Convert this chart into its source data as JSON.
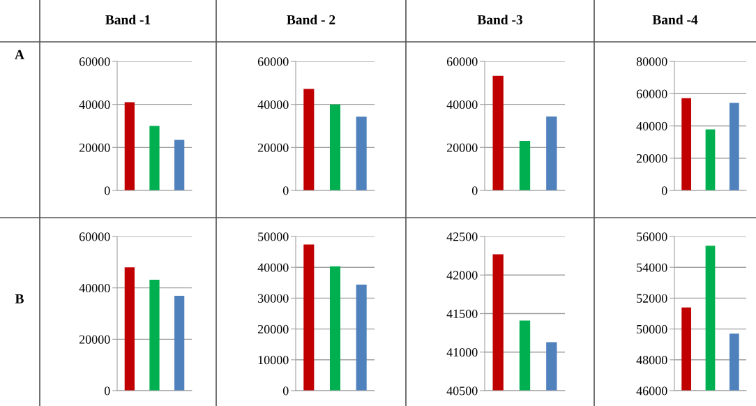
{
  "chart_data": [
    {
      "type": "bar",
      "title": "Band -1",
      "annotations": [
        "A"
      ],
      "categories": [
        null,
        null,
        null
      ],
      "values": [
        41000,
        30000,
        23500
      ],
      "colors": [
        "#c00000",
        "#00b050",
        "#4f81bd"
      ],
      "ylim": [
        0,
        60000
      ],
      "yticks": [
        0,
        20000,
        40000,
        60000
      ],
      "grid": "y"
    },
    {
      "type": "bar",
      "title": "Band - 2",
      "categories": [
        null,
        null,
        null
      ],
      "values": [
        47200,
        40000,
        34300
      ],
      "colors": [
        "#c00000",
        "#00b050",
        "#4f81bd"
      ],
      "ylim": [
        0,
        60000
      ],
      "yticks": [
        0,
        20000,
        40000,
        60000
      ],
      "grid": "y"
    },
    {
      "type": "bar",
      "title": "Band -3",
      "categories": [
        null,
        null,
        null
      ],
      "values": [
        53300,
        23000,
        34400
      ],
      "colors": [
        "#c00000",
        "#00b050",
        "#4f81bd"
      ],
      "ylim": [
        0,
        60000
      ],
      "yticks": [
        0,
        20000,
        40000,
        60000
      ],
      "grid": "y"
    },
    {
      "type": "bar",
      "title": "Band -4",
      "categories": [
        null,
        null,
        null
      ],
      "values": [
        57200,
        37800,
        54300
      ],
      "colors": [
        "#c00000",
        "#00b050",
        "#4f81bd"
      ],
      "ylim": [
        0,
        80000
      ],
      "yticks": [
        0,
        20000,
        40000,
        60000,
        80000
      ],
      "grid": "y"
    },
    {
      "type": "bar",
      "annotations": [
        "B"
      ],
      "categories": [
        null,
        null,
        null
      ],
      "values": [
        48000,
        43200,
        36900
      ],
      "colors": [
        "#c00000",
        "#00b050",
        "#4f81bd"
      ],
      "ylim": [
        0,
        60000
      ],
      "yticks": [
        0,
        20000,
        40000,
        60000
      ],
      "grid": "y"
    },
    {
      "type": "bar",
      "categories": [
        null,
        null,
        null
      ],
      "values": [
        47400,
        40300,
        34400
      ],
      "colors": [
        "#c00000",
        "#00b050",
        "#4f81bd"
      ],
      "ylim": [
        0,
        50000
      ],
      "yticks": [
        0,
        10000,
        20000,
        30000,
        40000,
        50000
      ],
      "grid": "y"
    },
    {
      "type": "bar",
      "categories": [
        null,
        null,
        null
      ],
      "values": [
        42270,
        41410,
        41130
      ],
      "colors": [
        "#c00000",
        "#00b050",
        "#4f81bd"
      ],
      "ylim": [
        40500,
        42500
      ],
      "yticks": [
        40500,
        41000,
        41500,
        42000,
        42500
      ],
      "grid": "y"
    },
    {
      "type": "bar",
      "categories": [
        null,
        null,
        null
      ],
      "values": [
        51400,
        55400,
        49700
      ],
      "colors": [
        "#c00000",
        "#00b050",
        "#4f81bd"
      ],
      "ylim": [
        46000,
        56000
      ],
      "yticks": [
        46000,
        48000,
        50000,
        52000,
        54000,
        56000
      ],
      "grid": "y"
    }
  ]
}
